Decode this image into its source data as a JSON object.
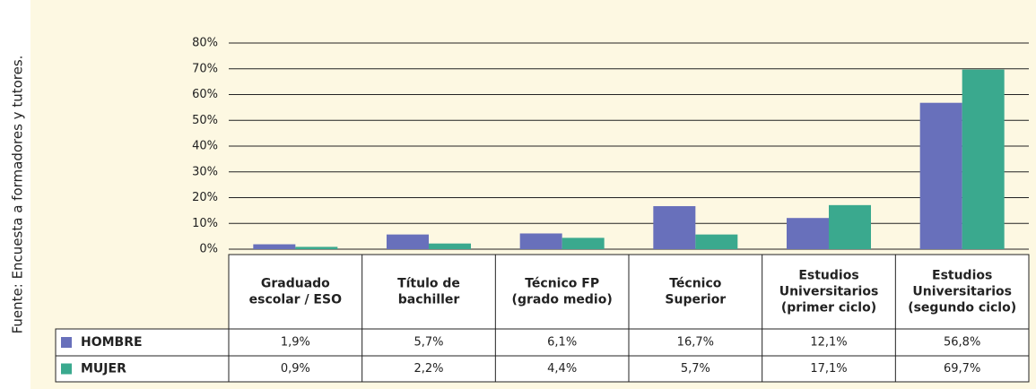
{
  "source": "Fuente: Encuesta a formadores y tutores.",
  "chart_data": {
    "type": "bar",
    "categories": [
      [
        "Graduado",
        "escolar / ESO"
      ],
      [
        "Título de",
        "bachiller"
      ],
      [
        "Técnico FP",
        "(grado medio)"
      ],
      [
        "Técnico",
        "Superior"
      ],
      [
        "Estudios",
        "Universitarios",
        "(primer ciclo)"
      ],
      [
        "Estudios",
        "Universitarios",
        "(segundo ciclo)"
      ]
    ],
    "series": [
      {
        "name": "HOMBRE",
        "color": "#6870bb",
        "values": [
          1.9,
          5.7,
          6.1,
          16.7,
          12.1,
          56.8
        ],
        "value_labels": [
          "1,9%",
          "5,7%",
          "6,1%",
          "16,7%",
          "12,1%",
          "56,8%"
        ]
      },
      {
        "name": "MUJER",
        "color": "#3aa98e",
        "values": [
          0.9,
          2.2,
          4.4,
          5.7,
          17.1,
          69.7
        ],
        "value_labels": [
          "0,9%",
          "2,2%",
          "4,4%",
          "5,7%",
          "17,1%",
          "69,7%"
        ]
      }
    ],
    "ylim": [
      0,
      80
    ],
    "yticks": [
      {
        "value": 0,
        "label": "0%"
      },
      {
        "value": 10,
        "label": "10%"
      },
      {
        "value": 20,
        "label": "20%"
      },
      {
        "value": 30,
        "label": "30%"
      },
      {
        "value": 40,
        "label": "40%"
      },
      {
        "value": 50,
        "label": "50%"
      },
      {
        "value": 60,
        "label": "60%"
      },
      {
        "value": 70,
        "label": "70%"
      },
      {
        "value": 80,
        "label": "80%"
      }
    ],
    "grid": true
  }
}
